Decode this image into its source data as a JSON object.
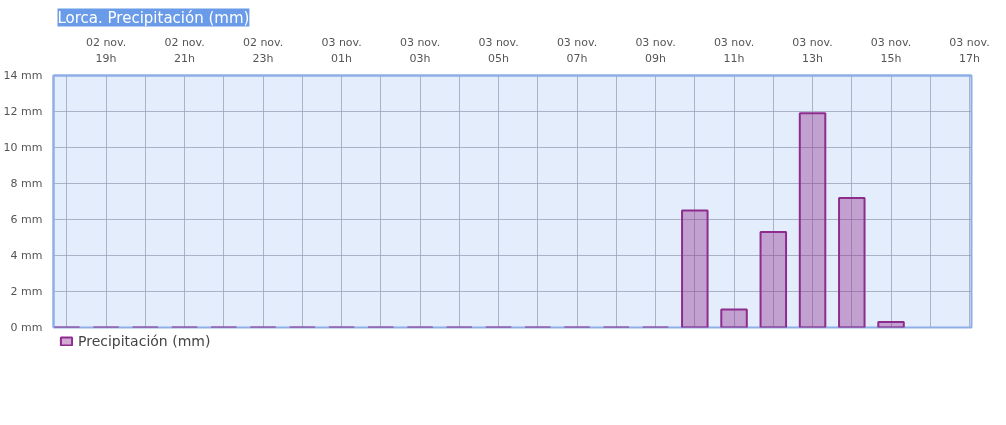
{
  "chart_data": {
    "type": "bar",
    "title": "Lorca. Precipitación (mm)",
    "categories": [
      null,
      "02 nov.\n19h",
      null,
      "02 nov.\n21h",
      null,
      "02 nov.\n23h",
      null,
      "03 nov.\n01h",
      null,
      "03 nov.\n03h",
      null,
      "03 nov.\n05h",
      null,
      "03 nov.\n07h",
      null,
      "03 nov.\n09h",
      null,
      "03 nov.\n11h",
      null,
      "03 nov.\n13h",
      null,
      "03 nov.\n15h",
      null,
      "03 nov.\n17h"
    ],
    "series": [
      {
        "name": "Precipitación (mm)",
        "color": "#8e2c8e",
        "values": [
          0,
          0,
          0,
          0,
          0,
          0,
          0,
          0,
          0,
          0,
          0,
          0,
          0,
          0,
          0,
          0,
          6.5,
          1.0,
          5.3,
          11.9,
          7.2,
          0.3,
          null,
          null
        ]
      }
    ],
    "ylim": [
      0,
      14
    ],
    "yticks": [
      {
        "value": 0,
        "label": "0 mm"
      },
      {
        "value": 2,
        "label": "2 mm"
      },
      {
        "value": 4,
        "label": "4 mm"
      },
      {
        "value": 6,
        "label": "6 mm"
      },
      {
        "value": 8,
        "label": "8 mm"
      },
      {
        "value": 10,
        "label": "10 mm"
      },
      {
        "value": 12,
        "label": "12 mm"
      },
      {
        "value": 14,
        "label": "14 mm"
      }
    ],
    "grid": true,
    "legend": "bottom left"
  }
}
